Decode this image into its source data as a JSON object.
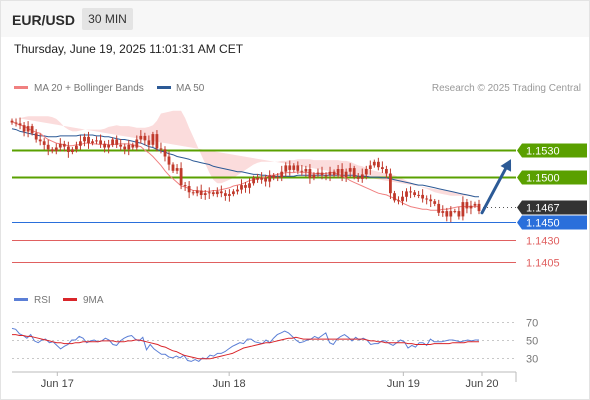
{
  "header": {
    "symbol": "EUR/USD",
    "timeframe": "30 MIN"
  },
  "datetime": "Thursday, June 19, 2025 11:01:31 AM CET",
  "legend": {
    "ma20_label": "MA 20 + Bollinger Bands",
    "ma20_color": "#f08080",
    "ma50_label": "MA 50",
    "ma50_color": "#2c5a96",
    "attribution": "Research © 2025 Trading Central"
  },
  "chart_data": [
    {
      "type": "candlestick",
      "x_labels": [
        "Jun 17",
        "Jun 18",
        "Jun 19",
        "Jun 20"
      ],
      "ylim": [
        1.1395,
        1.1585
      ],
      "colors": {
        "candle": "#c0392b",
        "bollinger_fill": "#fbdcdc",
        "ma20": "#f08080",
        "ma50": "#2c5a96",
        "arrow": "#2c5a96"
      },
      "series": {
        "close": [
          1.1561,
          1.156,
          1.1558,
          1.1551,
          1.1557,
          1.1549,
          1.1542,
          1.154,
          1.1536,
          1.1531,
          1.1529,
          1.1533,
          1.1537,
          1.1534,
          1.1528,
          1.1531,
          1.1535,
          1.154,
          1.1545,
          1.1538,
          1.154,
          1.1541,
          1.1537,
          1.1533,
          1.1536,
          1.1542,
          1.1536,
          1.1534,
          1.1531,
          1.1536,
          1.1533,
          1.1542,
          1.1546,
          1.1541,
          1.1536,
          1.1548,
          1.1532,
          1.1531,
          1.1523,
          1.1514,
          1.1507,
          1.151,
          1.1491,
          1.149,
          1.1483,
          1.1482,
          1.1485,
          1.148,
          1.1482,
          1.1483,
          1.1481,
          1.1484,
          1.1482,
          1.1479,
          1.1481,
          1.1484,
          1.1486,
          1.1491,
          1.1488,
          1.1493,
          1.1499,
          1.1497,
          1.1499,
          1.1495,
          1.1502,
          1.1499,
          1.15,
          1.1506,
          1.1513,
          1.1508,
          1.1513,
          1.1507,
          1.1506,
          1.1509,
          1.1499,
          1.1503,
          1.1505,
          1.1502,
          1.1502,
          1.1506,
          1.1502,
          1.1509,
          1.15,
          1.1506,
          1.151,
          1.15,
          1.1498,
          1.1503,
          1.1509,
          1.1513,
          1.1517,
          1.1511,
          1.1509,
          1.1504,
          1.1482,
          1.1474,
          1.1473,
          1.1478,
          1.1484,
          1.1483,
          1.148,
          1.148,
          1.1476,
          1.1475,
          1.1473,
          1.147,
          1.146,
          1.1462,
          1.1456,
          1.1462,
          1.1462,
          1.1456,
          1.1472,
          1.1465,
          1.1468,
          1.147,
          1.1462
        ],
        "ma20": [
          1.1562,
          1.156,
          1.1558,
          1.1557,
          1.1554,
          1.1552,
          1.155,
          1.1549,
          1.1545,
          1.1542,
          1.154,
          1.1538,
          1.1537,
          1.1536,
          1.1535,
          1.1535,
          1.1536,
          1.1536,
          1.1538,
          1.1538,
          1.1537,
          1.1537,
          1.1536,
          1.1537,
          1.1536,
          1.1536,
          1.1537,
          1.1537,
          1.1537,
          1.1537,
          1.1536,
          1.1535,
          1.1534,
          1.153,
          1.1527,
          1.1523,
          1.1518,
          1.1513,
          1.1507,
          1.1502,
          1.1498,
          1.1494,
          1.149,
          1.1489,
          1.1487,
          1.1485,
          1.1485,
          1.1484,
          1.1484,
          1.1484,
          1.1485,
          1.1485,
          1.1486,
          1.1487,
          1.1488,
          1.149,
          1.1491,
          1.1492,
          1.1494,
          1.1496,
          1.1497,
          1.1498,
          1.1499,
          1.15,
          1.1502,
          1.1502,
          1.1503,
          1.1504,
          1.1505,
          1.1505,
          1.1505,
          1.1506,
          1.1505,
          1.1505,
          1.1505,
          1.1504,
          1.1504,
          1.1504,
          1.1504,
          1.1505,
          1.1505,
          1.1503,
          1.1501,
          1.1499,
          1.1496,
          1.1494,
          1.1492,
          1.149,
          1.1488,
          1.1486,
          1.1484,
          1.1482,
          1.1481,
          1.148,
          1.1478,
          1.1476,
          1.1474,
          1.1471,
          1.1469,
          1.1467,
          1.1466,
          1.1465,
          1.1464,
          1.1464,
          1.1463,
          1.1463,
          1.1463,
          1.1464,
          1.1464,
          1.1465,
          1.1466,
          1.1467,
          1.1467,
          1.1467,
          1.1467,
          1.1467,
          1.1467
        ],
        "bb_upper": [
          1.1567,
          1.1566,
          1.1566,
          1.1567,
          1.1568,
          1.1568,
          1.1568,
          1.1568,
          1.1568,
          1.1568,
          1.1567,
          1.1565,
          1.1561,
          1.1556,
          1.1553,
          1.1551,
          1.1551,
          1.1552,
          1.1553,
          1.1553,
          1.1553,
          1.1553,
          1.1553,
          1.1554,
          1.1556,
          1.1557,
          1.1558,
          1.1557,
          1.1557,
          1.1557,
          1.1556,
          1.1555,
          1.1555,
          1.1555,
          1.1556,
          1.1558,
          1.1563,
          1.1571,
          1.1572,
          1.1573,
          1.1574,
          1.1574,
          1.1574,
          1.1566,
          1.1555,
          1.1545,
          1.1535,
          1.1525,
          1.1515,
          1.1505,
          1.1497,
          1.1493,
          1.1493,
          1.1495,
          1.1497,
          1.1499,
          1.1502,
          1.1505,
          1.1508,
          1.1511,
          1.1514,
          1.1516,
          1.1517,
          1.1517,
          1.1517,
          1.1517,
          1.1517,
          1.1518,
          1.1518,
          1.1519,
          1.1519,
          1.152,
          1.152,
          1.152,
          1.152,
          1.1519,
          1.1519,
          1.1519,
          1.1519,
          1.1519,
          1.1519,
          1.1519,
          1.1518,
          1.1518,
          1.1517,
          1.1515,
          1.1513,
          1.1512,
          1.151,
          1.1508,
          1.1507,
          1.1506,
          1.1505,
          1.1504,
          1.1503,
          1.1502,
          1.15,
          1.1498,
          1.1496,
          1.1494,
          1.1492,
          1.149,
          1.1488,
          1.1487,
          1.1485,
          1.1483,
          1.1482,
          1.1481,
          1.148,
          1.1479,
          1.1479,
          1.1479,
          1.1479,
          1.1479,
          1.1479,
          1.1479
        ],
        "bb_lower": [
          1.1557,
          1.1554,
          1.155,
          1.1545,
          1.154,
          1.1536,
          1.1532,
          1.153,
          1.1525,
          1.1521,
          1.1518,
          1.1518,
          1.1518,
          1.1518,
          1.1518,
          1.1518,
          1.1519,
          1.152,
          1.1521,
          1.1521,
          1.152,
          1.152,
          1.1519,
          1.1519,
          1.1519,
          1.1519,
          1.1519,
          1.152,
          1.152,
          1.152,
          1.152,
          1.152,
          1.1519,
          1.1517,
          1.1512,
          1.1505,
          1.1495,
          1.1484,
          1.1475,
          1.1467,
          1.1461,
          1.1456,
          1.1451,
          1.1449,
          1.1448,
          1.1449,
          1.145,
          1.1452,
          1.1456,
          1.146,
          1.1465,
          1.147,
          1.1473,
          1.1475,
          1.1476,
          1.1478,
          1.1479,
          1.1479,
          1.148,
          1.1481,
          1.1482,
          1.1482,
          1.1483,
          1.1484,
          1.1486,
          1.1487,
          1.1488,
          1.1489,
          1.149,
          1.1491,
          1.1491,
          1.1491,
          1.1491,
          1.1491,
          1.149,
          1.149,
          1.1489,
          1.1489,
          1.1489,
          1.1489,
          1.1488,
          1.1486,
          1.1483,
          1.1479,
          1.1474,
          1.147,
          1.1466,
          1.1463,
          1.146,
          1.1458,
          1.1457,
          1.1456,
          1.1455,
          1.1454,
          1.1452,
          1.1451,
          1.145,
          1.1448,
          1.1447,
          1.1447,
          1.1447,
          1.1448,
          1.1449,
          1.145,
          1.145,
          1.1451,
          1.1451,
          1.1452,
          1.1452,
          1.1453,
          1.1453,
          1.1454,
          1.1454,
          1.1454,
          1.1455,
          1.1455,
          1.1455
        ],
        "ma50": [
          1.1554,
          1.1553,
          1.1551,
          1.155,
          1.1549,
          1.1548,
          1.1547,
          1.1546,
          1.1546,
          1.1545,
          1.1545,
          1.1545,
          1.1546,
          1.1546,
          1.1546,
          1.1546,
          1.1546,
          1.1547,
          1.1547,
          1.1547,
          1.1547,
          1.1546,
          1.1546,
          1.1545,
          1.1545,
          1.1544,
          1.1543,
          1.1542,
          1.1542,
          1.1541,
          1.154,
          1.1539,
          1.1538,
          1.1536,
          1.1534,
          1.1533,
          1.1531,
          1.1529,
          1.1528,
          1.1526,
          1.1525,
          1.1523,
          1.1522,
          1.1521,
          1.152,
          1.1518,
          1.1517,
          1.1516,
          1.1515,
          1.1514,
          1.1512,
          1.1511,
          1.151,
          1.1509,
          1.1508,
          1.1507,
          1.1506,
          1.1506,
          1.1505,
          1.1504,
          1.1503,
          1.1503,
          1.1502,
          1.1502,
          1.1501,
          1.1501,
          1.1501,
          1.1501,
          1.1501,
          1.1501,
          1.1501,
          1.1502,
          1.1502,
          1.1502,
          1.1502,
          1.1502,
          1.1502,
          1.1502,
          1.1502,
          1.1502,
          1.1502,
          1.1502,
          1.1502,
          1.1502,
          1.1502,
          1.1502,
          1.1501,
          1.1501,
          1.1501,
          1.15,
          1.15,
          1.15,
          1.1499,
          1.1499,
          1.1498,
          1.1497,
          1.1496,
          1.1495,
          1.1494,
          1.1493,
          1.1492,
          1.1491,
          1.1491,
          1.149,
          1.1489,
          1.1488,
          1.1487,
          1.1486,
          1.1485,
          1.1484,
          1.1483,
          1.1482,
          1.1481,
          1.148,
          1.1479,
          1.1478,
          1.1478
        ]
      },
      "levels": [
        {
          "value": 1.153,
          "label": "1.1530",
          "color": "#5aa000",
          "style": "box"
        },
        {
          "value": 1.15,
          "label": "1.1500",
          "color": "#5aa000",
          "style": "box"
        },
        {
          "value": 1.1467,
          "label": "1.1467",
          "color": "#333333",
          "style": "box",
          "dotted": true
        },
        {
          "value": 1.145,
          "label": "1.1450",
          "color": "#2a6fdb",
          "style": "box"
        },
        {
          "value": 1.143,
          "label": "1.1430",
          "color": "#e06060",
          "style": "text"
        },
        {
          "value": 1.1405,
          "label": "1.1405",
          "color": "#e06060",
          "style": "text"
        }
      ],
      "arrow": {
        "from_value": 1.146,
        "to_value": 1.152,
        "color": "#2c5a96"
      }
    },
    {
      "type": "line",
      "legend": [
        {
          "name": "RSI",
          "color": "#5b7fd6"
        },
        {
          "name": "9MA",
          "color": "#d9252a"
        }
      ],
      "ylim": [
        22,
        78
      ],
      "y_ticks": [
        70,
        50,
        30
      ],
      "series": [
        {
          "name": "RSI",
          "values": [
            63,
            62,
            57,
            55,
            52,
            56,
            49,
            47,
            50,
            51,
            47,
            48,
            44,
            40,
            43,
            45,
            50,
            50,
            54,
            52,
            47,
            49,
            50,
            48,
            49,
            52,
            50,
            45,
            44,
            49,
            52,
            54,
            55,
            51,
            49,
            53,
            39,
            45,
            40,
            37,
            34,
            34,
            31,
            30,
            32,
            30,
            33,
            27,
            26,
            28,
            26,
            30,
            29,
            33,
            32,
            35,
            35,
            37,
            40,
            43,
            45,
            47,
            46,
            51,
            51,
            48,
            47,
            46,
            50,
            47,
            52,
            56,
            58,
            60,
            58,
            54,
            50,
            47,
            48,
            50,
            51,
            54,
            52,
            55,
            58,
            47,
            45,
            51,
            54,
            56,
            53,
            49,
            53,
            50,
            52,
            50,
            45,
            46,
            46,
            49,
            49,
            46,
            44,
            47,
            50,
            48,
            41,
            44,
            42,
            47,
            47,
            44,
            51,
            48,
            48,
            48,
            49,
            50,
            50,
            49,
            48,
            49,
            50,
            49,
            50,
            50
          ]
        },
        {
          "name": "9MA",
          "values": [
            56,
            56,
            55,
            55,
            54,
            54,
            53,
            52,
            51,
            50,
            49,
            48,
            47,
            47,
            46,
            46,
            46,
            47,
            47,
            48,
            48,
            48,
            48,
            48,
            49,
            49,
            49,
            49,
            48,
            48,
            48,
            49,
            49,
            50,
            50,
            49,
            48,
            47,
            46,
            45,
            43,
            42,
            40,
            38,
            37,
            35,
            33,
            32,
            31,
            30,
            29,
            29,
            29,
            29,
            30,
            31,
            32,
            33,
            34,
            35,
            37,
            39,
            41,
            42,
            43,
            44,
            45,
            46,
            47,
            47,
            48,
            49,
            50,
            51,
            52,
            52,
            53,
            52,
            51,
            51,
            51,
            51,
            51,
            51,
            51,
            51,
            51,
            51,
            51,
            51,
            51,
            51,
            51,
            51,
            51,
            50,
            49,
            49,
            48,
            48,
            47,
            47,
            47,
            47,
            47,
            47,
            46,
            46,
            45,
            45,
            45,
            45,
            45,
            46,
            46,
            46,
            46,
            46,
            47,
            47,
            47,
            47,
            48,
            48,
            48,
            48
          ]
        }
      ]
    }
  ]
}
